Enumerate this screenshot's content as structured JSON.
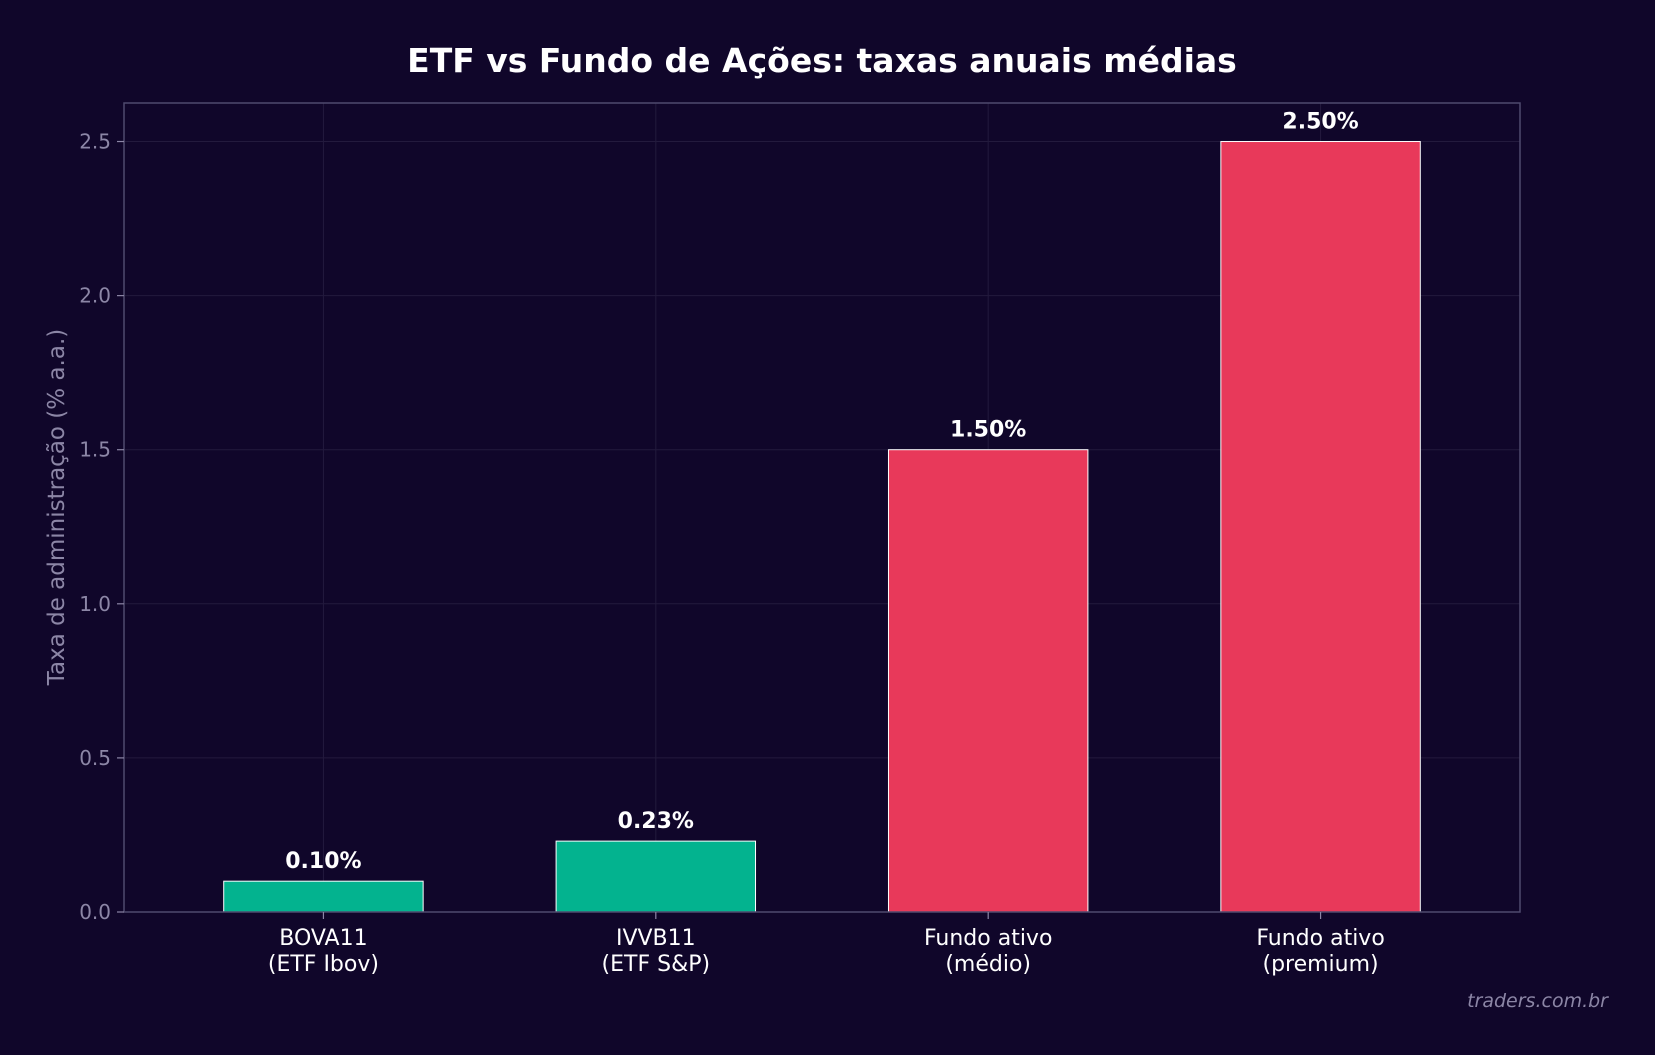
{
  "chart_data": {
    "type": "bar",
    "title": "ETF vs Fundo de Ações: taxas anuais médias",
    "xlabel": "",
    "ylabel": "Taxa de administração (% a.a.)",
    "categories": [
      [
        "BOVA11",
        "(ETF Ibov)"
      ],
      [
        "IVVB11",
        "(ETF S&P)"
      ],
      [
        "Fundo ativo",
        "(médio)"
      ],
      [
        "Fundo ativo",
        "(premium)"
      ]
    ],
    "values": [
      0.1,
      0.23,
      1.5,
      2.5
    ],
    "value_labels": [
      "0.10%",
      "0.23%",
      "1.50%",
      "2.50%"
    ],
    "bar_colors": [
      "#03b38f",
      "#03b38f",
      "#e8395a",
      "#e8395a"
    ],
    "ylim": [
      0,
      2.625
    ],
    "yticks": [
      0.0,
      0.5,
      1.0,
      1.5,
      2.0,
      2.5
    ],
    "ytick_labels": [
      "0.0",
      "0.5",
      "1.0",
      "1.5",
      "2.0",
      "2.5"
    ],
    "grid": true,
    "legend": "none"
  },
  "watermark": "traders.com.br",
  "colors": {
    "background": "#10062a",
    "text": "#ffffff",
    "muted": "#8c86a6",
    "frame": "#4f4a6e",
    "grid": "#231a3d"
  }
}
